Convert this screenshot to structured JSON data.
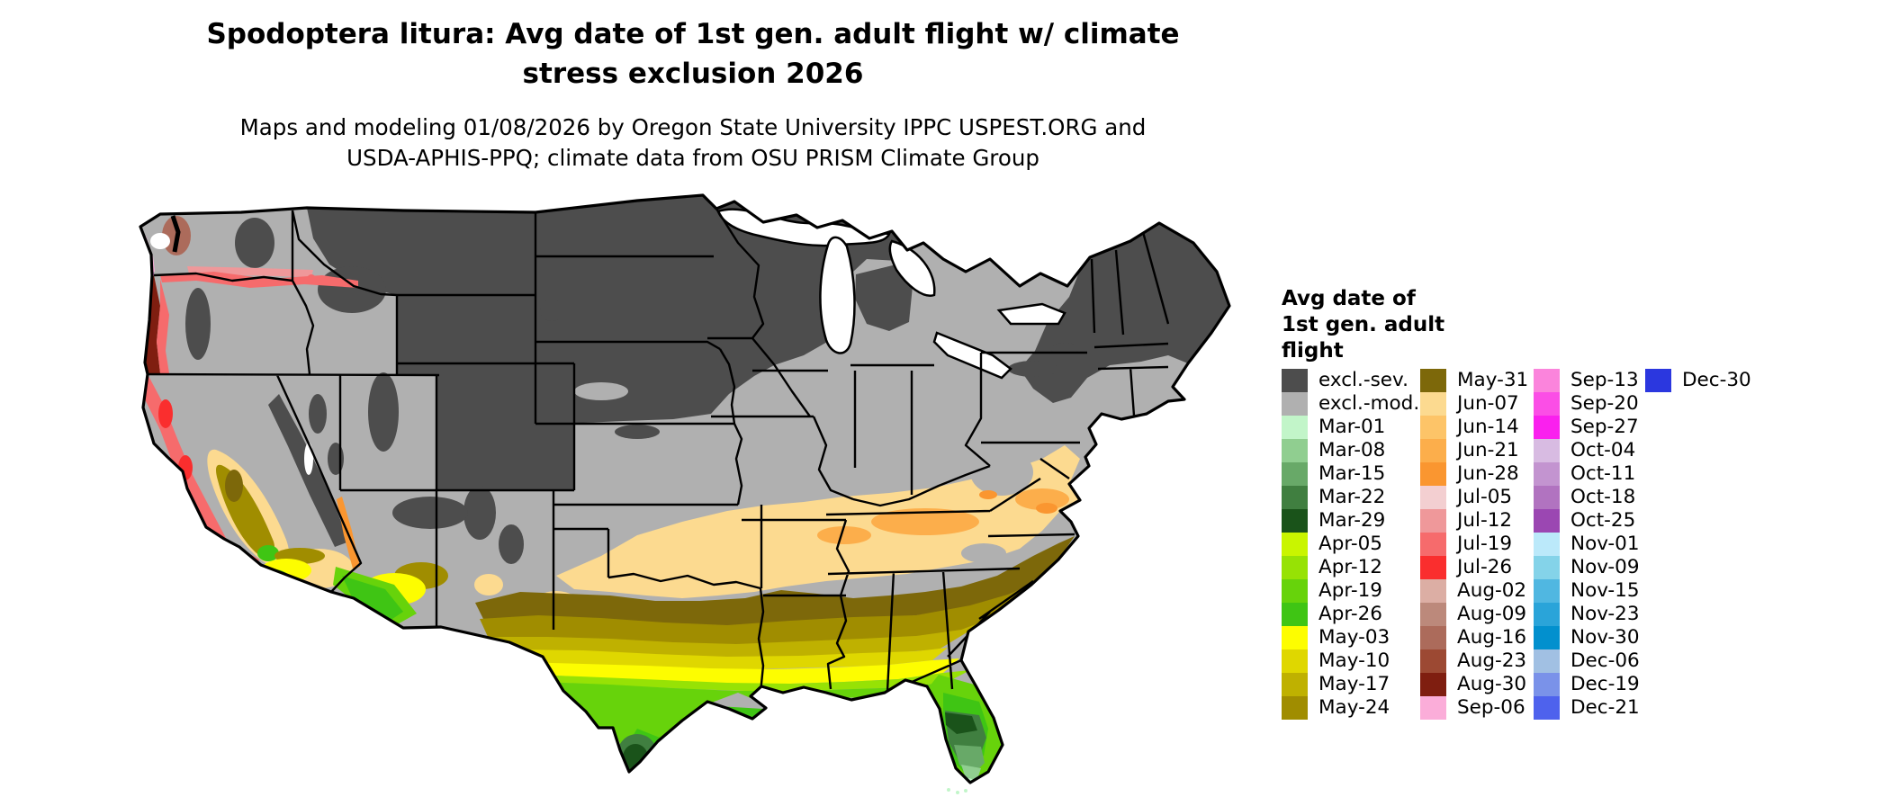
{
  "title": {
    "line1": "Spodoptera litura: Avg date of 1st gen. adult flight w/ climate",
    "line2": "stress exclusion 2026"
  },
  "subtitle": {
    "line1": "Maps and modeling 01/08/2026 by Oregon State University IPPC USPEST.ORG and",
    "line2": "USDA-APHIS-PPQ; climate data from OSU PRISM Climate Group"
  },
  "legend": {
    "title_lines": [
      "Avg date of",
      "1st gen. adult",
      "flight"
    ],
    "columns": [
      {
        "items": [
          {
            "label": "excl.-sev.",
            "color": "#4d4d4d"
          },
          {
            "label": "excl.-mod.",
            "color": "#b0b0b0"
          },
          {
            "label": "Mar-01",
            "color": "#c2f5c9"
          },
          {
            "label": "Mar-08",
            "color": "#90ce90"
          },
          {
            "label": "Mar-15",
            "color": "#68a968"
          },
          {
            "label": "Mar-22",
            "color": "#407f40"
          },
          {
            "label": "Mar-29",
            "color": "#1a531a"
          },
          {
            "label": "Apr-05",
            "color": "#c9f500"
          },
          {
            "label": "Apr-12",
            "color": "#97e205"
          },
          {
            "label": "Apr-19",
            "color": "#67d30b"
          },
          {
            "label": "Apr-26",
            "color": "#3fc514"
          },
          {
            "label": "May-03",
            "color": "#fdfd00"
          },
          {
            "label": "May-10",
            "color": "#dfd700"
          },
          {
            "label": "May-17",
            "color": "#bfb100"
          },
          {
            "label": "May-24",
            "color": "#a08d00"
          }
        ]
      },
      {
        "items": [
          {
            "label": "May-31",
            "color": "#7d680a"
          },
          {
            "label": "Jun-07",
            "color": "#fcda90"
          },
          {
            "label": "Jun-14",
            "color": "#fdc468"
          },
          {
            "label": "Jun-21",
            "color": "#fcae4b"
          },
          {
            "label": "Jun-28",
            "color": "#fa9630"
          },
          {
            "label": "Jul-05",
            "color": "#f3cfd1"
          },
          {
            "label": "Jul-12",
            "color": "#ef989a"
          },
          {
            "label": "Jul-19",
            "color": "#f66b6c"
          },
          {
            "label": "Jul-26",
            "color": "#fa2e2e"
          },
          {
            "label": "Aug-02",
            "color": "#dcaea4"
          },
          {
            "label": "Aug-09",
            "color": "#bc897b"
          },
          {
            "label": "Aug-16",
            "color": "#ac6b5b"
          },
          {
            "label": "Aug-23",
            "color": "#9c4933"
          },
          {
            "label": "Aug-30",
            "color": "#7f1e10"
          },
          {
            "label": "Sep-06",
            "color": "#fbadd9"
          }
        ]
      },
      {
        "items": [
          {
            "label": "Sep-13",
            "color": "#fb84dc"
          },
          {
            "label": "Sep-20",
            "color": "#fb4ee6"
          },
          {
            "label": "Sep-27",
            "color": "#fa20ee"
          },
          {
            "label": "Oct-04",
            "color": "#d8bbe2"
          },
          {
            "label": "Oct-11",
            "color": "#c394d0"
          },
          {
            "label": "Oct-18",
            "color": "#b173c0"
          },
          {
            "label": "Oct-25",
            "color": "#9b47b2"
          },
          {
            "label": "Nov-01",
            "color": "#bbe9fa"
          },
          {
            "label": "Nov-09",
            "color": "#84d3e9"
          },
          {
            "label": "Nov-15",
            "color": "#50b7e1"
          },
          {
            "label": "Nov-23",
            "color": "#2aa4d9"
          },
          {
            "label": "Nov-30",
            "color": "#0290ce"
          },
          {
            "label": "Dec-06",
            "color": "#a1c0e3"
          },
          {
            "label": "Dec-19",
            "color": "#7a92e9"
          },
          {
            "label": "Dec-21",
            "color": "#4e62ed"
          }
        ]
      },
      {
        "items": [
          {
            "label": "Dec-30",
            "color": "#2b37df"
          }
        ]
      }
    ]
  }
}
